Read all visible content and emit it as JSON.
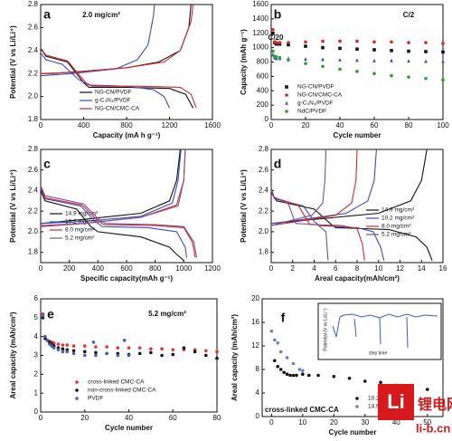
{
  "chart_data": [
    {
      "type": "line",
      "panel": "a",
      "annotations": [
        "2.0 mg/cm²"
      ],
      "x_label": "Capacity (mA h g⁻¹)",
      "y_label": "Potential (V vs Li/Li⁺)",
      "xlim": [
        0,
        1600
      ],
      "xticks": [
        0,
        400,
        800,
        1200,
        1600
      ],
      "ylim": [
        1.8,
        2.8
      ],
      "yticks": [
        1.8,
        {
          "value": 2,
          "label": "2.0"
        },
        2.2,
        2.4,
        2.6,
        2.8
      ],
      "series": [
        {
          "name": "NG-CN/PVDF",
          "color": "#111111",
          "x": [
            0,
            50,
            250,
            400,
            450,
            800,
            1200,
            1350,
            1420,
            null,
            0,
            100,
            400,
            800,
            1100,
            1300,
            1380,
            1400
          ],
          "values": [
            2.42,
            2.35,
            2.3,
            2.12,
            2.08,
            2.08,
            2.07,
            2.02,
            1.9,
            null,
            2.2,
            2.2,
            2.22,
            2.25,
            2.3,
            2.4,
            2.6,
            2.8
          ]
        },
        {
          "name": "g-C₃N₄/PVDF",
          "color": "#3b4cc0",
          "x": [
            0,
            50,
            200,
            350,
            450,
            800,
            1050,
            1150,
            1200,
            null,
            0,
            300,
            700,
            900,
            1000,
            1050,
            1060
          ],
          "values": [
            2.38,
            2.32,
            2.28,
            2.15,
            2.1,
            2.09,
            2.06,
            2.0,
            1.9,
            null,
            2.18,
            2.2,
            2.24,
            2.32,
            2.45,
            2.7,
            2.8
          ]
        },
        {
          "name": "NG-CN/CMC-CA",
          "color": "#d62728",
          "x": [
            0,
            50,
            250,
            420,
            480,
            900,
            1300,
            1400,
            1450,
            null,
            0,
            300,
            800,
            1150,
            1300,
            1400,
            1420
          ],
          "values": [
            2.42,
            2.36,
            2.31,
            2.12,
            2.09,
            2.09,
            2.08,
            2.02,
            1.9,
            null,
            2.2,
            2.21,
            2.25,
            2.3,
            2.4,
            2.65,
            2.8
          ]
        }
      ]
    },
    {
      "type": "scatter",
      "panel": "b",
      "annotations": [
        "C/2",
        "C/20"
      ],
      "x_label": "Cycle number",
      "y_label": "Capacity (mAh g⁻¹)",
      "xlim": [
        0,
        100
      ],
      "xticks": [
        0,
        20,
        40,
        60,
        80,
        100
      ],
      "ylim": [
        0,
        1600
      ],
      "yticks": [
        0,
        200,
        400,
        600,
        800,
        1000,
        1200,
        1400,
        1600
      ],
      "x": [
        1,
        2,
        3,
        5,
        10,
        20,
        30,
        40,
        50,
        60,
        70,
        80,
        90,
        100
      ],
      "series": [
        {
          "name": "NG-CN/PVDF",
          "color": "#111111",
          "marker": "square",
          "values": [
            1200,
            1070,
            1050,
            1050,
            1040,
            1020,
            1000,
            990,
            980,
            970,
            960,
            950,
            945,
            940
          ]
        },
        {
          "name": "NG-CN/CMC-CA",
          "color": "#d62728",
          "marker": "circle",
          "values": [
            1250,
            1080,
            1070,
            1070,
            1070,
            1080,
            1090,
            1090,
            1090,
            1080,
            1080,
            1070,
            1070,
            1060
          ]
        },
        {
          "name": "g-C₃N₄/PVDF",
          "color": "#3b4cc0",
          "marker": "triangle",
          "values": [
            900,
            860,
            850,
            850,
            850,
            840,
            835,
            830,
            825,
            820,
            820,
            815,
            810,
            810
          ]
        },
        {
          "name": "NdC/PVDF",
          "color": "#2ca02c",
          "marker": "circle",
          "values": [
            950,
            880,
            870,
            860,
            830,
            780,
            740,
            700,
            670,
            640,
            610,
            590,
            570,
            550
          ]
        }
      ]
    },
    {
      "type": "line",
      "panel": "c",
      "annotations": [],
      "x_label": "Specific capacity(mAh g⁻¹)",
      "y_label": "Potential (V vs Li/Li⁺)",
      "xlim": [
        0,
        1200
      ],
      "xticks": [
        0,
        200,
        400,
        600,
        800,
        1000,
        1200
      ],
      "ylim": [
        1.7,
        2.8
      ],
      "yticks": [
        1.8,
        {
          "value": 2,
          "label": "2.0"
        },
        2.2,
        2.4,
        2.6,
        2.8
      ],
      "series": [
        {
          "name": "14.9 mg/cm²",
          "color": "#111111",
          "x": [
            0,
            30,
            250,
            350,
            400,
            700,
            900,
            950,
            1000,
            null,
            0,
            300,
            700,
            900,
            950,
            975
          ],
          "values": [
            2.4,
            2.3,
            2.22,
            2.05,
            2.0,
            1.95,
            1.85,
            1.78,
            1.72,
            null,
            2.08,
            2.12,
            2.18,
            2.3,
            2.5,
            2.8
          ]
        },
        {
          "name": "10.2 mg/cm²",
          "color": "#3b4cc0",
          "x": [
            0,
            30,
            280,
            380,
            430,
            750,
            950,
            1010,
            1020,
            null,
            0,
            300,
            700,
            920,
            960,
            980
          ],
          "values": [
            2.42,
            2.32,
            2.25,
            2.1,
            2.05,
            2.04,
            2.0,
            1.85,
            1.75,
            null,
            2.08,
            2.1,
            2.15,
            2.28,
            2.5,
            2.8
          ]
        },
        {
          "name": "8.0 mg/cm²",
          "color": "#d62728",
          "x": [
            0,
            30,
            290,
            390,
            440,
            800,
            1000,
            1060,
            1080,
            null,
            0,
            300,
            700,
            950,
            1000,
            1010
          ],
          "values": [
            2.44,
            2.33,
            2.26,
            2.12,
            2.07,
            2.06,
            2.04,
            1.9,
            1.75,
            null,
            2.05,
            2.08,
            2.14,
            2.26,
            2.5,
            2.8
          ]
        },
        {
          "name": "5.2 mg/cm²",
          "color": "#7b4fa0",
          "x": [
            0,
            30,
            300,
            400,
            450,
            800,
            1000,
            1070,
            1090,
            null,
            0,
            300,
            700,
            960,
            1000,
            1010
          ],
          "values": [
            2.45,
            2.35,
            2.27,
            2.13,
            2.08,
            2.07,
            2.05,
            1.9,
            1.75,
            null,
            2.06,
            2.08,
            2.14,
            2.25,
            2.5,
            2.8
          ]
        }
      ]
    },
    {
      "type": "line",
      "panel": "d",
      "annotations": [],
      "x_label": "Areal capacity(mAh/cm²)",
      "y_label": "Potential (V vs Li/Li⁺)",
      "xlim": [
        0,
        16
      ],
      "xticks": [
        0,
        2,
        4,
        6,
        8,
        10,
        12,
        14,
        16
      ],
      "ylim": [
        1.7,
        2.8
      ],
      "yticks": [
        1.8,
        {
          "value": 2,
          "label": "2.0"
        },
        2.2,
        2.4,
        2.6,
        2.8
      ],
      "series": [
        {
          "name": "14.9 mg/cm²",
          "color": "#111111",
          "x": [
            0,
            0.5,
            4,
            5.5,
            6,
            11,
            13.5,
            14.5,
            15,
            null,
            0,
            4,
            10,
            13,
            14,
            14.5
          ],
          "values": [
            2.38,
            2.3,
            2.22,
            2.08,
            2.04,
            2.02,
            1.95,
            1.85,
            1.72,
            null,
            2.08,
            2.12,
            2.18,
            2.3,
            2.5,
            2.8
          ]
        },
        {
          "name": "10.2 mg/cm²",
          "color": "#3b4cc0",
          "x": [
            0,
            0.3,
            3,
            4,
            4.5,
            8,
            9.5,
            10.2,
            10.5,
            null,
            0,
            3,
            7,
            9,
            9.6,
            9.8
          ],
          "values": [
            2.4,
            2.32,
            2.25,
            2.1,
            2.06,
            2.04,
            2.0,
            1.85,
            1.72,
            null,
            2.08,
            2.12,
            2.18,
            2.3,
            2.5,
            2.8
          ]
        },
        {
          "name": "8.0 mg/cm²",
          "color": "#d62728",
          "x": [
            0,
            0.3,
            2.5,
            3.3,
            3.6,
            6.5,
            8,
            8.5,
            8.7,
            null,
            0,
            2.5,
            6,
            7.5,
            7.9,
            8
          ],
          "values": [
            2.42,
            2.33,
            2.26,
            2.12,
            2.07,
            2.06,
            2.03,
            1.88,
            1.72,
            null,
            2.06,
            2.1,
            2.16,
            2.28,
            2.5,
            2.8
          ]
        },
        {
          "name": "5.2 mg/cm²",
          "color": "#7b4fa0",
          "x": [
            0,
            0.2,
            1.6,
            2.1,
            2.3,
            4.3,
            5.1,
            5.3,
            null,
            0,
            1.5,
            3.8,
            4.8,
            5.0,
            5.1
          ],
          "values": [
            2.44,
            2.34,
            2.27,
            2.13,
            2.08,
            2.07,
            2.0,
            1.72,
            null,
            2.06,
            2.1,
            2.16,
            2.28,
            2.5,
            2.8
          ]
        }
      ]
    },
    {
      "type": "scatter",
      "panel": "e",
      "annotations": [
        "5.2 mg/cm²"
      ],
      "x_label": "Cycle number",
      "y_label": "Areal capacity (mAh/cm²)",
      "xlim": [
        0,
        80
      ],
      "xticks": [
        0,
        20,
        40,
        60,
        80
      ],
      "ylim": [
        0,
        6
      ],
      "yticks": [
        0,
        1,
        2,
        3,
        4,
        5,
        6
      ],
      "series": [
        {
          "name": "cross-linked CMC-CA",
          "color": "#e8332f",
          "marker": "circle",
          "x": [
            1,
            2,
            3,
            4,
            5,
            6,
            8,
            10,
            12,
            15,
            20,
            25,
            30,
            35,
            40,
            45,
            50,
            55,
            60,
            65,
            70,
            75,
            80
          ],
          "values": [
            5.2,
            4.0,
            3.8,
            3.75,
            3.7,
            3.65,
            3.6,
            3.55,
            3.55,
            3.5,
            3.5,
            3.45,
            3.45,
            3.4,
            3.4,
            3.4,
            3.35,
            3.35,
            3.3,
            3.3,
            3.3,
            3.25,
            3.2
          ]
        },
        {
          "name": "non-cross-linked CMC-CA",
          "color": "#111111",
          "marker": "circle",
          "x": [
            1,
            2,
            3,
            4,
            5,
            6,
            8,
            10,
            12,
            15,
            20,
            25,
            30,
            35,
            40,
            45,
            50,
            55,
            60,
            65,
            70,
            75,
            80
          ],
          "values": [
            5.0,
            3.9,
            3.8,
            3.7,
            3.6,
            3.5,
            3.4,
            3.35,
            3.3,
            3.25,
            3.2,
            3.15,
            3.1,
            3.1,
            3.05,
            3.1,
            3.15,
            3.0,
            3.05,
            3.4,
            3.2,
            3.0,
            2.85
          ]
        },
        {
          "name": "PVDF",
          "color": "#4a5fb0",
          "marker": "circle",
          "x": [
            1,
            2,
            3,
            4,
            5,
            6,
            8,
            10,
            12,
            15,
            20,
            24,
            25,
            30,
            35,
            38,
            40
          ],
          "values": [
            5.1,
            4.0,
            3.8,
            3.6,
            3.5,
            3.4,
            3.3,
            3.2,
            3.2,
            3.1,
            3.0,
            3.7,
            3.0,
            3.1,
            3.0,
            3.8,
            3.0
          ]
        }
      ]
    },
    {
      "type": "scatter",
      "panel": "f",
      "annotations": [
        "cross-linked CMC-CA",
        "Potential (V vs Li/Li⁺)",
        "step time"
      ],
      "x_label": "Cycle number",
      "y_label": "Areal capacity (mAh/cm²)",
      "xlim": [
        -3,
        55
      ],
      "xticks": [
        0,
        10,
        20,
        30,
        40,
        50
      ],
      "ylim": [
        0,
        20
      ],
      "yticks": [
        0,
        4,
        8,
        12,
        16,
        20
      ],
      "series": [
        {
          "name": "10.2 mg/cm²",
          "color": "#111111",
          "marker": "circle",
          "x": [
            1,
            2,
            3,
            4,
            5,
            6,
            7,
            8,
            10,
            12,
            15,
            20,
            25,
            30,
            35,
            40,
            45,
            50
          ],
          "values": [
            9.5,
            8.5,
            8,
            7.5,
            7.2,
            7.0,
            7.0,
            7.0,
            7.2,
            7.0,
            7.0,
            6.8,
            6.5,
            6.0,
            5.8,
            5.3,
            5.0,
            4.6
          ]
        },
        {
          "name": "14.9 mg/cm²",
          "color": "#6b7fc0",
          "marker": "circle",
          "x": [
            0,
            1,
            2,
            3,
            5,
            7,
            9,
            10
          ],
          "values": [
            14.5,
            13,
            12.5,
            11,
            10,
            9,
            8,
            7.8
          ]
        }
      ]
    }
  ],
  "watermark": {
    "logo": "Li",
    "text": "锂电网",
    "url": "li-b.cn"
  }
}
